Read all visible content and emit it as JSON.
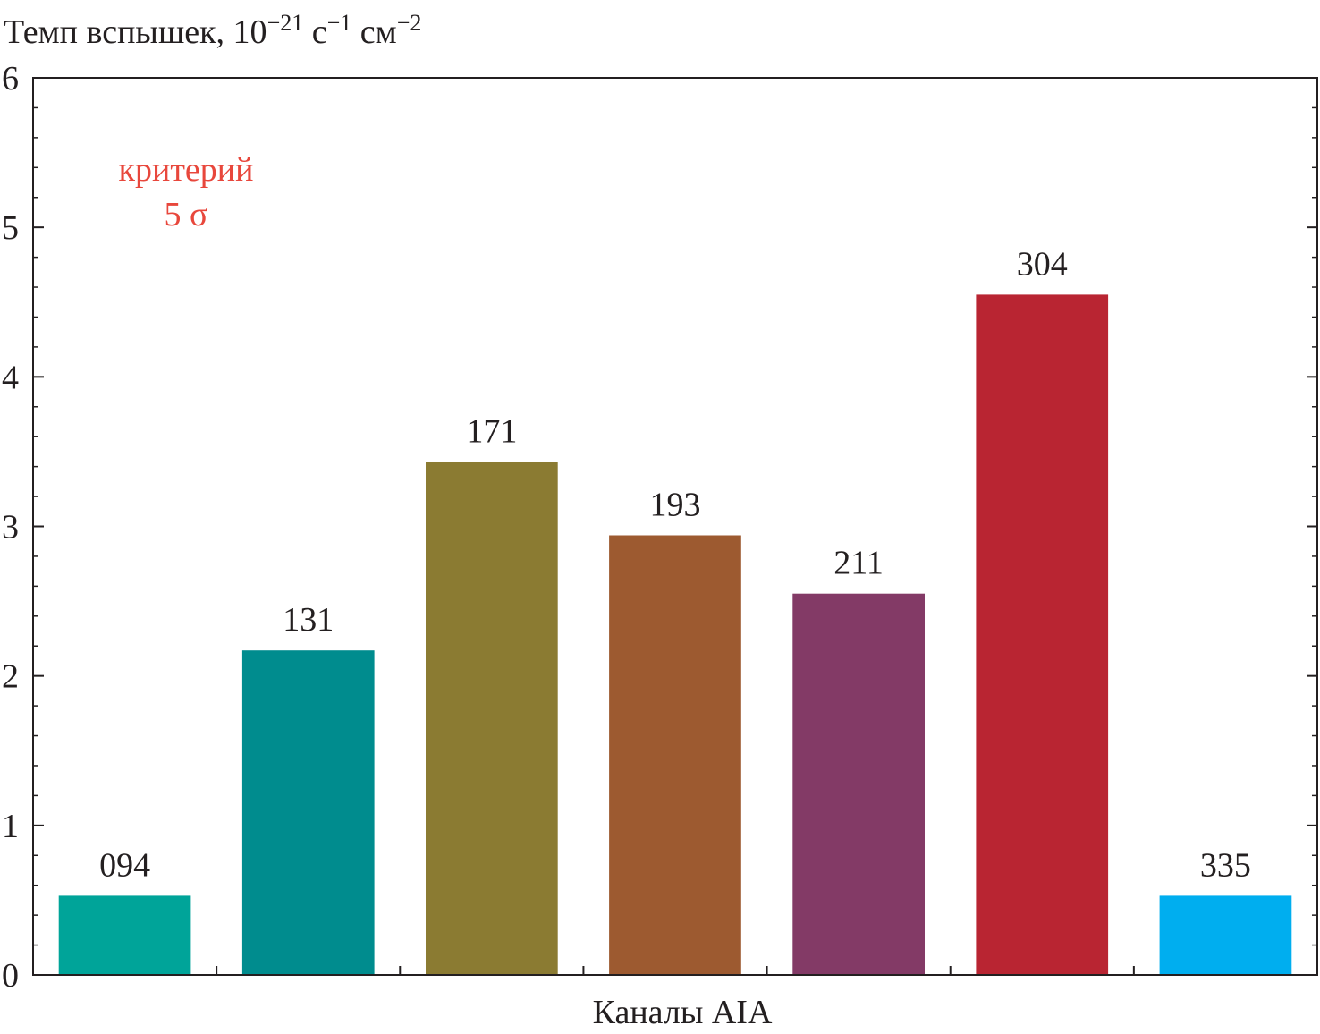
{
  "chart_data": {
    "type": "bar",
    "ylabel": {
      "base": "Темп вспышек, 10",
      "exp1": "−21",
      "mid1": " с",
      "exp2": "−1",
      "mid2": " см",
      "exp3": "−2"
    },
    "xlabel": "Каналы AIA",
    "ylim": [
      0,
      6
    ],
    "yticks": [
      "0",
      "1",
      "2",
      "3",
      "4",
      "5",
      "6"
    ],
    "categories": [
      "094",
      "131",
      "171",
      "193",
      "211",
      "304",
      "335"
    ],
    "values": [
      0.53,
      2.17,
      3.43,
      2.94,
      2.55,
      4.55,
      0.53
    ],
    "colors": [
      "#00a499",
      "#008c8e",
      "#8b7b32",
      "#9d5a30",
      "#833a66",
      "#b92532",
      "#00aeef"
    ],
    "annotation": {
      "line1": "критерий",
      "line2": "5 σ",
      "color": "#e8473c"
    },
    "grid": false,
    "legend": "none"
  }
}
